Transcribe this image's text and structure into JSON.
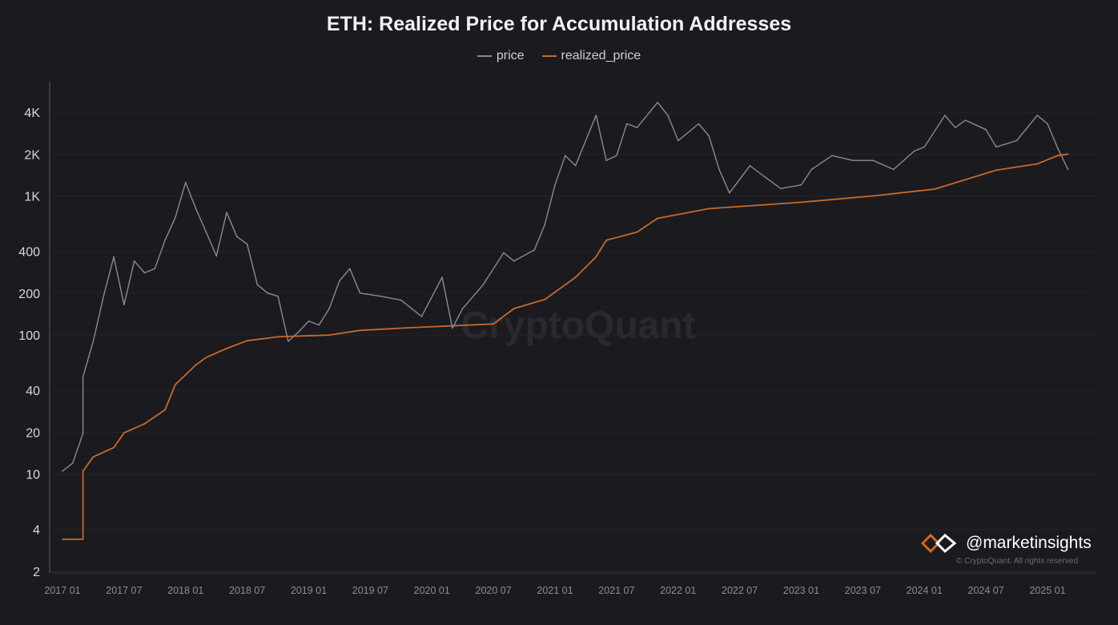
{
  "chart_data": {
    "type": "line",
    "title": "ETH: Realized Price for Accumulation Addresses",
    "xlabel": "",
    "ylabel": "",
    "y_scale": "log",
    "ylim": [
      2,
      4000
    ],
    "y_ticks": [
      2,
      4,
      10,
      20,
      40,
      100,
      200,
      400,
      1000,
      2000,
      4000
    ],
    "y_tick_labels": [
      "2",
      "4",
      "10",
      "20",
      "40",
      "100",
      "200",
      "400",
      "1K",
      "2K",
      "4K"
    ],
    "x_tick_labels": [
      "2017 01",
      "2017 07",
      "2018 01",
      "2018 07",
      "2019 01",
      "2019 07",
      "2020 01",
      "2020 07",
      "2021 01",
      "2021 07",
      "2022 01",
      "2022 07",
      "2023 01",
      "2023 07",
      "2024 01",
      "2024 07",
      "2025 01"
    ],
    "legend_position": "top-center",
    "grid": "horizontal, faint",
    "series": [
      {
        "name": "price",
        "color": "#8a8a90",
        "points": [
          [
            "2017-01",
            10.5
          ],
          [
            "2017-02",
            12
          ],
          [
            "2017-03",
            19.6
          ],
          [
            "2017-03",
            50
          ],
          [
            "2017-04",
            90
          ],
          [
            "2017-05",
            190
          ],
          [
            "2017-06",
            365
          ],
          [
            "2017-07",
            165
          ],
          [
            "2017-08",
            340
          ],
          [
            "2017-09",
            280
          ],
          [
            "2017-10",
            300
          ],
          [
            "2017-11",
            480
          ],
          [
            "2017-12",
            700
          ],
          [
            "2018-01",
            1250
          ],
          [
            "2018-02",
            810
          ],
          [
            "2018-03",
            550
          ],
          [
            "2018-04",
            370
          ],
          [
            "2018-05",
            760
          ],
          [
            "2018-06",
            510
          ],
          [
            "2018-07",
            450
          ],
          [
            "2018-08",
            230
          ],
          [
            "2018-09",
            200
          ],
          [
            "2018-10",
            190
          ],
          [
            "2018-11",
            90
          ],
          [
            "2018-12",
            105
          ],
          [
            "2019-01",
            126
          ],
          [
            "2019-02",
            118
          ],
          [
            "2019-03",
            155
          ],
          [
            "2019-04",
            245
          ],
          [
            "2019-05",
            300
          ],
          [
            "2019-06",
            200
          ],
          [
            "2019-08",
            190
          ],
          [
            "2019-10",
            178
          ],
          [
            "2019-12",
            136
          ],
          [
            "2020-02",
            260
          ],
          [
            "2020-03",
            112
          ],
          [
            "2020-04",
            155
          ],
          [
            "2020-06",
            230
          ],
          [
            "2020-08",
            390
          ],
          [
            "2020-09",
            340
          ],
          [
            "2020-11",
            410
          ],
          [
            "2020-12",
            620
          ],
          [
            "2021-01",
            1200
          ],
          [
            "2021-02",
            1950
          ],
          [
            "2021-03",
            1650
          ],
          [
            "2021-05",
            3800
          ],
          [
            "2021-06",
            1800
          ],
          [
            "2021-07",
            1950
          ],
          [
            "2021-08",
            3300
          ],
          [
            "2021-09",
            3100
          ],
          [
            "2021-11",
            4700
          ],
          [
            "2021-12",
            3800
          ],
          [
            "2022-01",
            2500
          ],
          [
            "2022-03",
            3300
          ],
          [
            "2022-04",
            2700
          ],
          [
            "2022-05",
            1550
          ],
          [
            "2022-06",
            1050
          ],
          [
            "2022-08",
            1650
          ],
          [
            "2022-09",
            1450
          ],
          [
            "2022-10",
            1280
          ],
          [
            "2022-11",
            1130
          ],
          [
            "2023-01",
            1200
          ],
          [
            "2023-02",
            1550
          ],
          [
            "2023-04",
            1950
          ],
          [
            "2023-06",
            1800
          ],
          [
            "2023-08",
            1800
          ],
          [
            "2023-10",
            1550
          ],
          [
            "2023-12",
            2100
          ],
          [
            "2024-01",
            2250
          ],
          [
            "2024-03",
            3800
          ],
          [
            "2024-04",
            3100
          ],
          [
            "2024-05",
            3500
          ],
          [
            "2024-07",
            3000
          ],
          [
            "2024-08",
            2250
          ],
          [
            "2024-10",
            2500
          ],
          [
            "2024-12",
            3800
          ],
          [
            "2025-01",
            3300
          ],
          [
            "2025-02",
            2200
          ],
          [
            "2025-03",
            1550
          ]
        ]
      },
      {
        "name": "realized_price",
        "color": "#c8692a",
        "points": [
          [
            "2017-01",
            3.4
          ],
          [
            "2017-03",
            3.4
          ],
          [
            "2017-03",
            10.5
          ],
          [
            "2017-04",
            13.3
          ],
          [
            "2017-06",
            15.5
          ],
          [
            "2017-07",
            19.8
          ],
          [
            "2017-09",
            23
          ],
          [
            "2017-11",
            29
          ],
          [
            "2017-12",
            44
          ],
          [
            "2018-02",
            61
          ],
          [
            "2018-03",
            69
          ],
          [
            "2018-05",
            80
          ],
          [
            "2018-07",
            91
          ],
          [
            "2018-10",
            97
          ],
          [
            "2019-03",
            100
          ],
          [
            "2019-06",
            108
          ],
          [
            "2019-11",
            113
          ],
          [
            "2020-07",
            120
          ],
          [
            "2020-09",
            155
          ],
          [
            "2020-12",
            180
          ],
          [
            "2021-03",
            260
          ],
          [
            "2021-05",
            365
          ],
          [
            "2021-06",
            480
          ],
          [
            "2021-09",
            550
          ],
          [
            "2021-11",
            690
          ],
          [
            "2022-04",
            810
          ],
          [
            "2023-01",
            900
          ],
          [
            "2023-08",
            1000
          ],
          [
            "2024-02",
            1120
          ],
          [
            "2024-08",
            1530
          ],
          [
            "2024-12",
            1700
          ],
          [
            "2025-02",
            1950
          ],
          [
            "2025-03",
            2000
          ]
        ]
      }
    ]
  },
  "watermark": "CryptoQuant",
  "copyright": "© CryptoQuant. All rights reserved",
  "brand": "@marketinsights"
}
